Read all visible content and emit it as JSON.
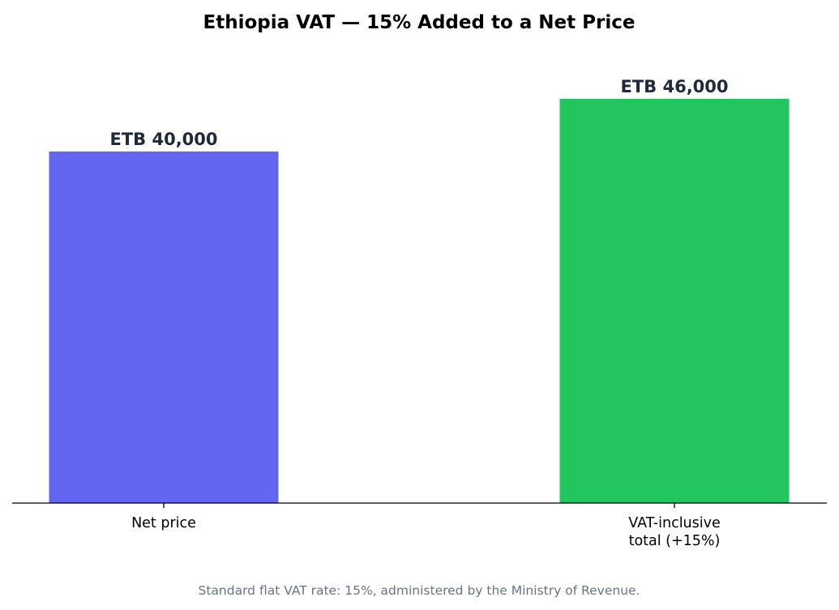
{
  "chart_data": {
    "type": "bar",
    "title": "Ethiopia VAT — 15% Added to a Net Price",
    "xlabel": "",
    "ylabel": "",
    "ylim": [
      0,
      53000
    ],
    "grid": false,
    "categories": [
      {
        "lines": [
          "Net price"
        ]
      },
      {
        "lines": [
          "VAT-inclusive",
          "total (+15%)"
        ]
      }
    ],
    "values": [
      40000,
      46000
    ],
    "value_labels": [
      "ETB 40,000",
      "ETB 46,000"
    ],
    "colors": [
      "#6366f1",
      "#22c55e"
    ],
    "footnote": "Standard flat VAT rate: 15%, administered by the Ministry of Revenue."
  }
}
